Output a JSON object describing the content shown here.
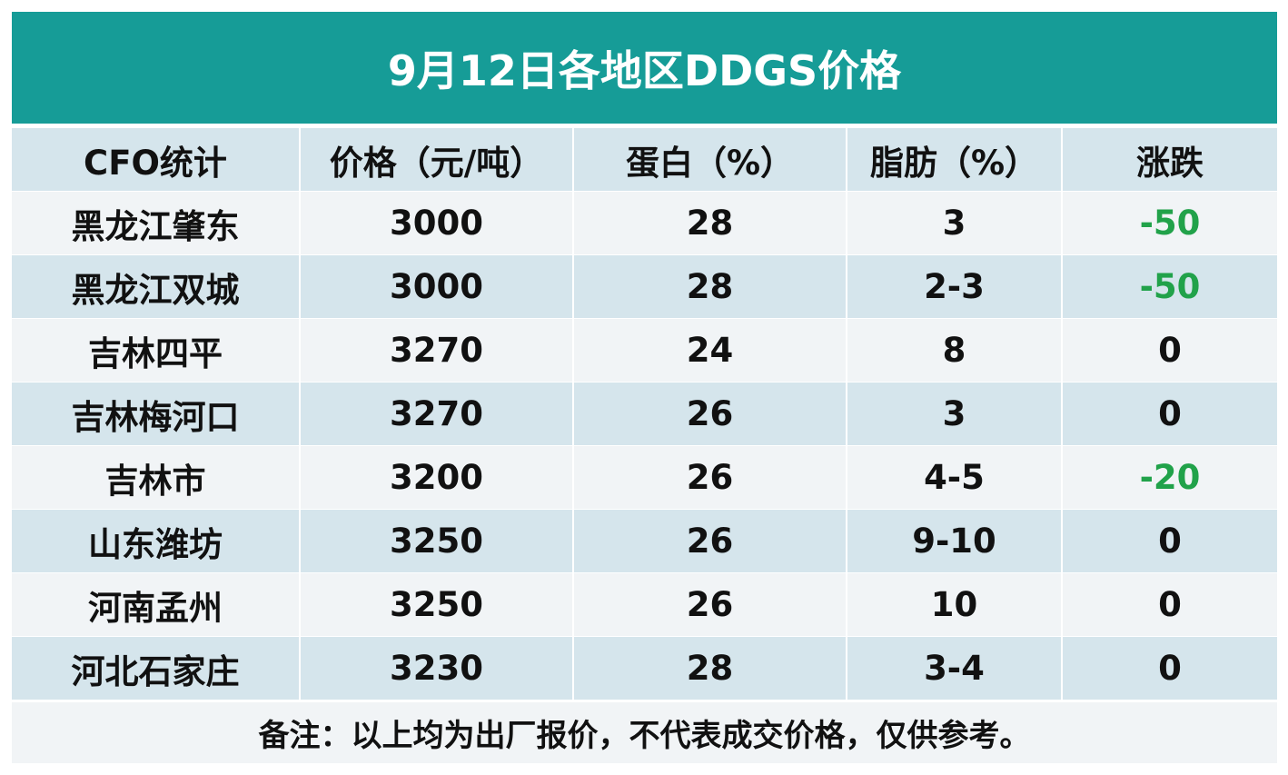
{
  "chart_data": {
    "type": "table",
    "title": "9月12日各地区DDGS价格",
    "columns": [
      "CFO统计",
      "价格（元/吨）",
      "蛋白（%）",
      "脂肪（%）",
      "涨跌"
    ],
    "rows": [
      [
        "黑龙江肇东",
        "3000",
        "28",
        "3",
        "-50"
      ],
      [
        "黑龙江双城",
        "3000",
        "28",
        "2-3",
        "-50"
      ],
      [
        "吉林四平",
        "3270",
        "24",
        "8",
        "0"
      ],
      [
        "吉林梅河口",
        "3270",
        "26",
        "3",
        "0"
      ],
      [
        "吉林市",
        "3200",
        "26",
        "4-5",
        "-20"
      ],
      [
        "山东潍坊",
        "3250",
        "26",
        "9-10",
        "0"
      ],
      [
        "河南孟州",
        "3250",
        "26",
        "10",
        "0"
      ],
      [
        "河北石家庄",
        "3230",
        "28",
        "3-4",
        "0"
      ]
    ],
    "footnote": "备注：以上均为出厂报价，不代表成交价格，仅供参考。"
  },
  "colors": {
    "title_bg": "#169c97",
    "title_text": "#ffffff",
    "row_light": "#f1f4f6",
    "row_dark": "#d5e5ec",
    "negative_change": "#21a24a",
    "text": "#111111"
  }
}
